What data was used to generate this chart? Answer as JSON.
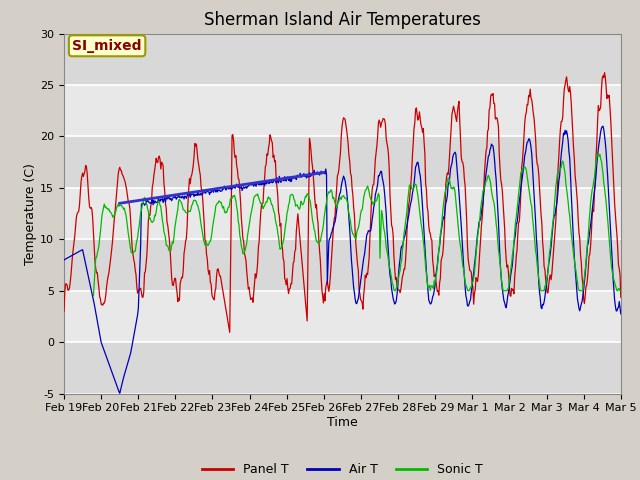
{
  "title": "Sherman Island Air Temperatures",
  "xlabel": "Time",
  "ylabel": "Temperature (C)",
  "ylim": [
    -5,
    30
  ],
  "fig_bg": "#d4d0c8",
  "plot_bg_light": "#e8e8e8",
  "plot_bg_dark": "#d8d8d8",
  "annotation_text": "SI_mixed",
  "annotation_color": "#8b0000",
  "annotation_bg": "#ffffcc",
  "annotation_edge": "#999900",
  "legend_entries": [
    "Panel T",
    "Air T",
    "Sonic T"
  ],
  "line_colors": [
    "#cc0000",
    "#0000bb",
    "#00bb00"
  ],
  "trend_color": "#3333cc",
  "tick_labels": [
    "Feb 19",
    "Feb 20",
    "Feb 21",
    "Feb 22",
    "Feb 23",
    "Feb 24",
    "Feb 25",
    "Feb 26",
    "Feb 27",
    "Feb 28",
    "Feb 29",
    "Mar 1",
    "Mar 2",
    "Mar 3",
    "Mar 4",
    "Mar 5"
  ],
  "yticks": [
    -5,
    0,
    5,
    10,
    15,
    20,
    25,
    30
  ],
  "title_fontsize": 12,
  "axis_label_fontsize": 9,
  "tick_fontsize": 8,
  "legend_fontsize": 9
}
